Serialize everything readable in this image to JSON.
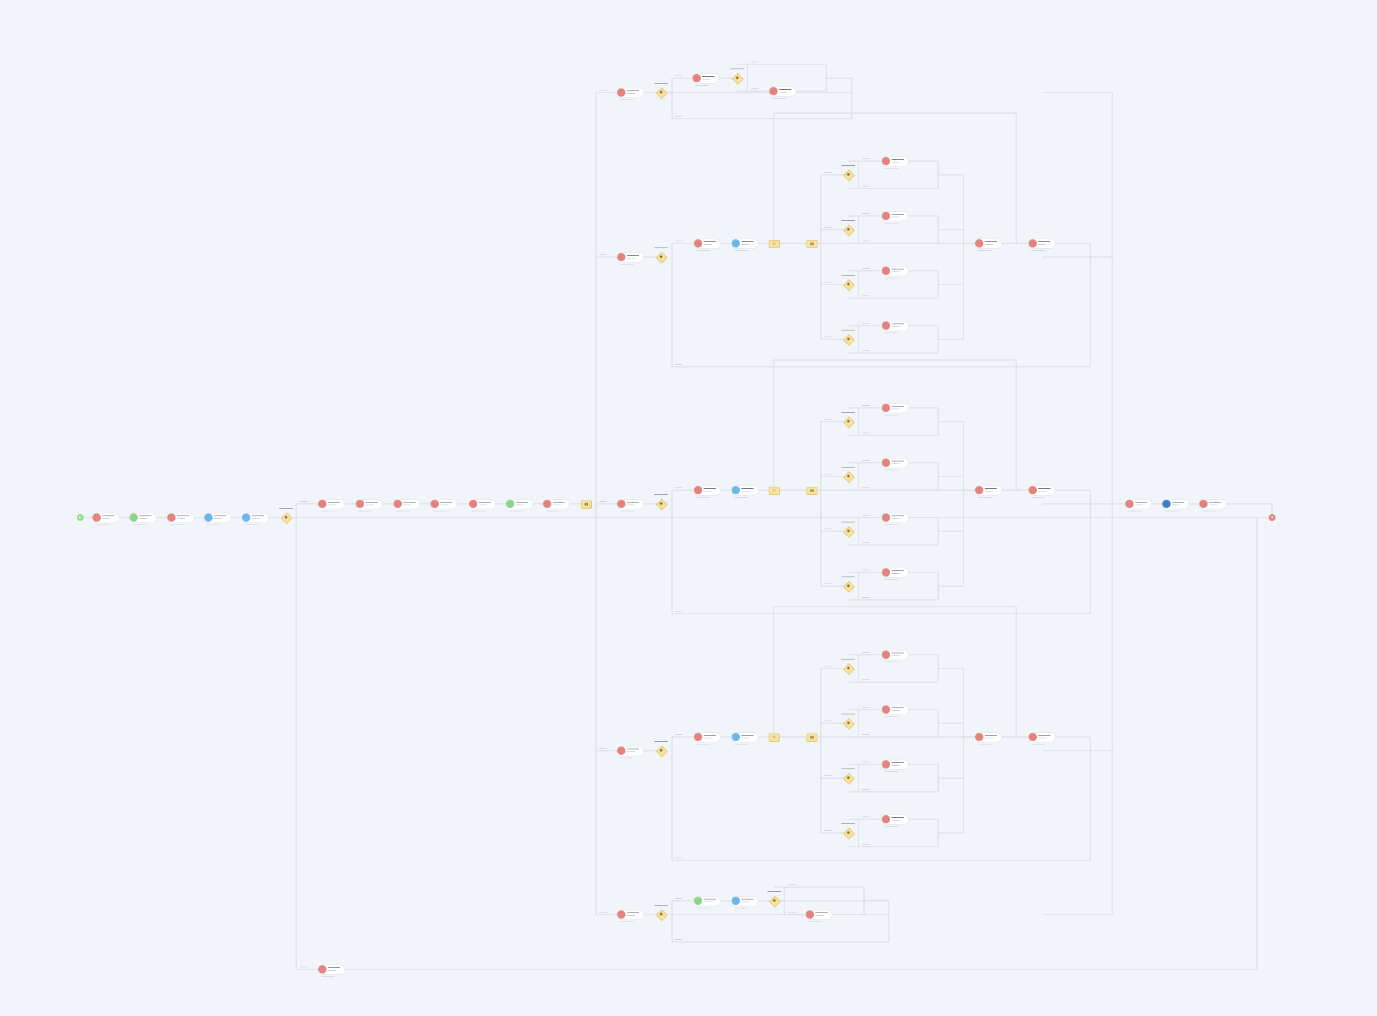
{
  "colors": {
    "background": "#f1f4f9",
    "edge": "#c9ced6",
    "task_red": "#e2837d",
    "task_blue": "#6cb7ea",
    "task_green": "#8fd48c",
    "task_navy": "#3f7fc1",
    "gateway_fill": "#f6e3a3",
    "start_event": "#8ee08b",
    "end_event": "#e2837d"
  },
  "icons": {
    "start": "play-icon",
    "end": "stop-icon",
    "gateway": "diamond-icon",
    "task": "circle-icon",
    "loop": "loop-icon",
    "parallel": "parallel-icon"
  },
  "diagram": {
    "start_event": "",
    "end_event": ""
  }
}
